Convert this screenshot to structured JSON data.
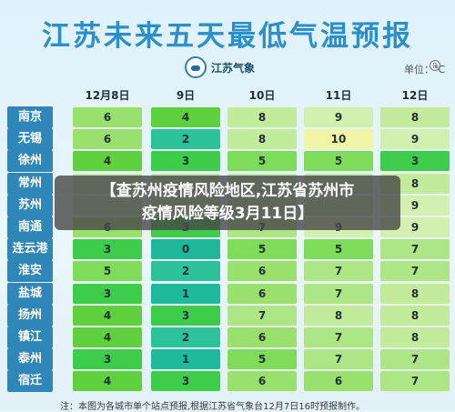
{
  "title": "江苏未来五天最低气温预报",
  "logo_text": "江苏气象",
  "unit": "单位：℃",
  "dates": [
    "12月8日",
    "9日",
    "10日",
    "11日",
    "12日"
  ],
  "banner": {
    "line1": "【查苏州疫情风险地区,江苏省苏州市",
    "line2": "疫情风险等级3月11日】"
  },
  "colors": {
    "title": "#2b8fc9",
    "city_bg": "#2f86b9",
    "banner_bg": "#464646"
  },
  "cities": [
    {
      "name": "南京",
      "temps": [
        "6",
        "4",
        "8",
        "9",
        "8"
      ]
    },
    {
      "name": "无锡",
      "temps": [
        "6",
        "2",
        "8",
        "10",
        "9"
      ]
    },
    {
      "name": "徐州",
      "temps": [
        "4",
        "3",
        "5",
        "5",
        "3"
      ]
    },
    {
      "name": "常州",
      "temps": [
        "",
        "",
        "",
        "",
        "8"
      ]
    },
    {
      "name": "苏州",
      "temps": [
        "",
        "",
        "",
        "",
        "9"
      ]
    },
    {
      "name": "南通",
      "temps": [
        "6",
        "3",
        "7",
        "9",
        "9"
      ]
    },
    {
      "name": "连云港",
      "temps": [
        "3",
        "0",
        "5",
        "5",
        "7"
      ]
    },
    {
      "name": "淮安",
      "temps": [
        "5",
        "2",
        "6",
        "7",
        "7"
      ]
    },
    {
      "name": "盐城",
      "temps": [
        "3",
        "1",
        "6",
        "7",
        "8"
      ]
    },
    {
      "name": "扬州",
      "temps": [
        "4",
        "3",
        "7",
        "8",
        "8"
      ]
    },
    {
      "name": "镇江",
      "temps": [
        "4",
        "2",
        "6",
        "7",
        "8"
      ]
    },
    {
      "name": "泰州",
      "temps": [
        "3",
        "1",
        "5",
        "7",
        "7"
      ]
    },
    {
      "name": "宿迁",
      "temps": [
        "4",
        "3",
        "6",
        "6",
        "7"
      ]
    }
  ],
  "footer": "注：本图为各城市单个站点预报,根据江苏省气象台12月7日16时预报制作。"
}
